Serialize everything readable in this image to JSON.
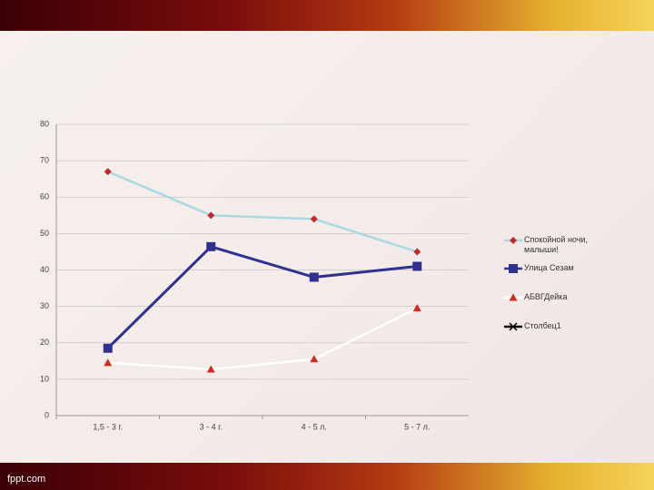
{
  "chart_data": {
    "type": "line",
    "categories": [
      "1,5 - 3 г.",
      "3 - 4 г.",
      "4 - 5 л.",
      "5 - 7 л."
    ],
    "series": [
      {
        "name": "Спокойной ночи, малыши!",
        "color": "#a9d9e2",
        "marker": "diamond",
        "marker_color": "#c0282d",
        "values": [
          67,
          55,
          54,
          45
        ]
      },
      {
        "name": "Улица Сезам",
        "color": "#2e3192",
        "marker": "square",
        "marker_color": "#2e3192",
        "values": [
          18.5,
          46.4,
          38,
          41
        ]
      },
      {
        "name": "АБВГДейка",
        "color": "#ffffff",
        "marker": "triangle",
        "marker_color": "#d42a1e",
        "values": [
          14.5,
          12.7,
          15.5,
          29.5
        ]
      },
      {
        "name": "Столбец1",
        "color": "#000000",
        "marker": "x",
        "marker_color": "#000000",
        "values": [
          null,
          null,
          null,
          null
        ]
      }
    ],
    "ylim": [
      0,
      80
    ],
    "yticks": [
      0,
      10,
      20,
      30,
      40,
      50,
      60,
      70,
      80
    ],
    "grid": true,
    "legend": "right"
  },
  "footer": "fppt.com"
}
